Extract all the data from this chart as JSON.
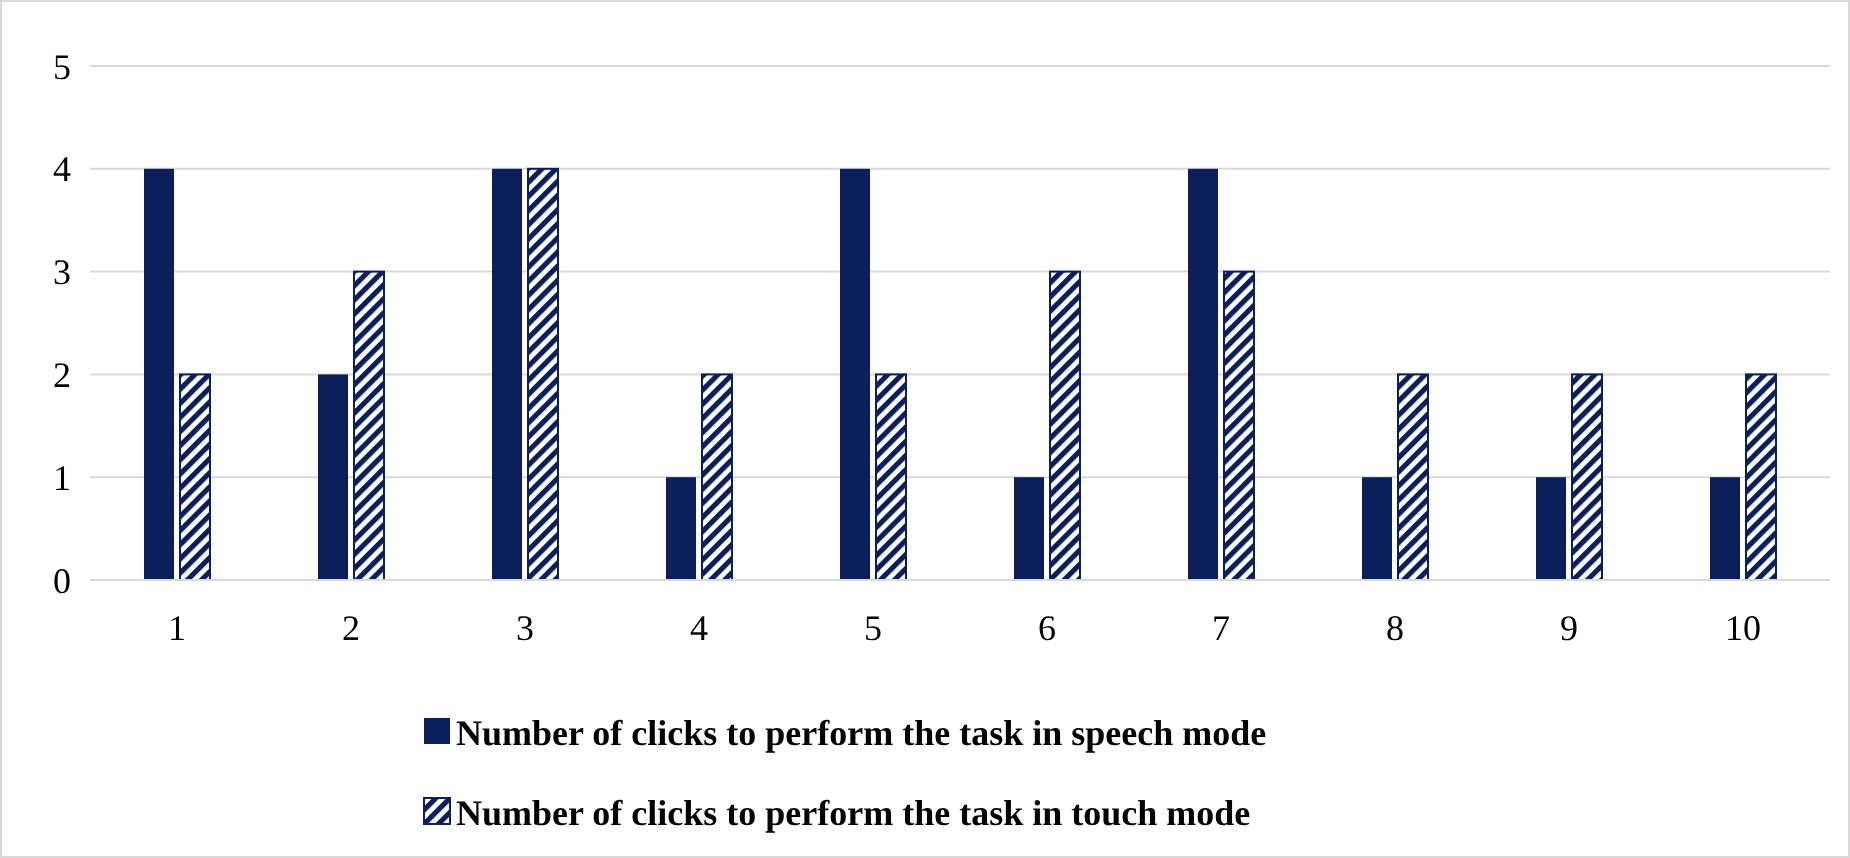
{
  "chart_data": {
    "type": "bar",
    "categories": [
      "1",
      "2",
      "3",
      "4",
      "5",
      "6",
      "7",
      "8",
      "9",
      "10"
    ],
    "series": [
      {
        "name": "Number of clicks to perform the task in speech mode",
        "color": "#0c1f5b",
        "values": [
          4,
          2,
          4,
          1,
          4,
          1,
          4,
          1,
          1,
          1
        ]
      },
      {
        "name": "Number of clicks to perform the task in touch mode",
        "color": "#0c1f5b",
        "values": [
          2,
          3,
          4,
          2,
          2,
          3,
          3,
          2,
          2,
          2
        ]
      }
    ],
    "ylim": [
      0,
      5
    ],
    "yticks": [
      0,
      1,
      2,
      3,
      4,
      5
    ],
    "grid": "y",
    "legend": "bottom"
  }
}
